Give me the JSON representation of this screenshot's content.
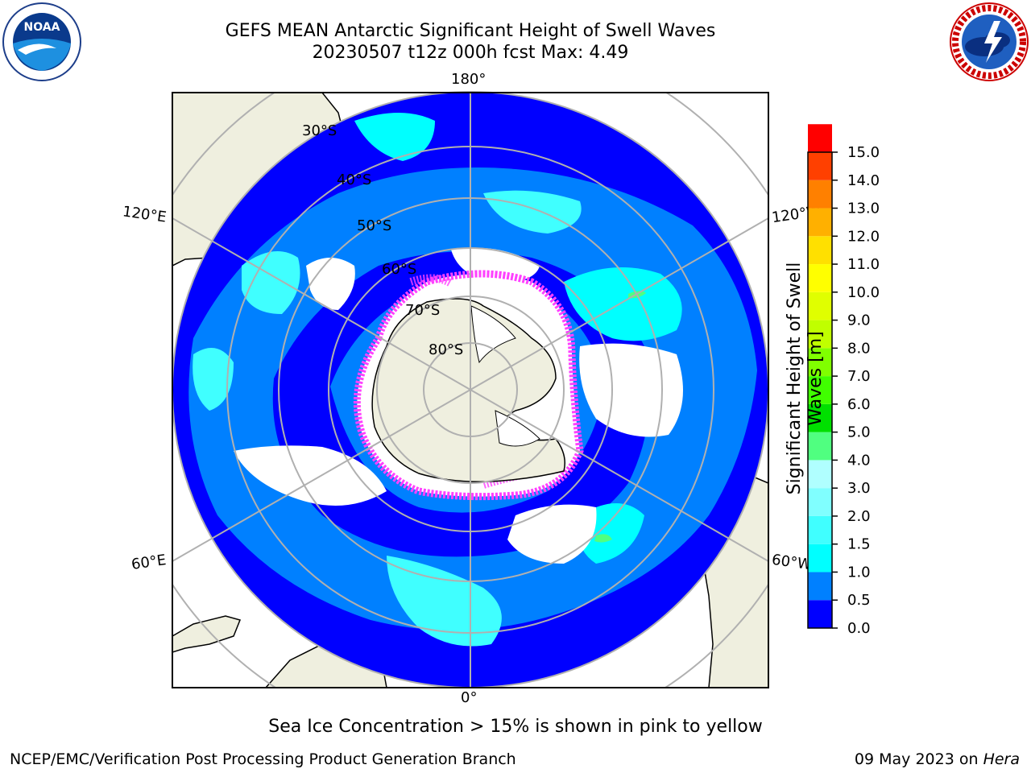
{
  "title": {
    "line1": "GEFS MEAN Antarctic Significant Height of Swell Waves",
    "line2": "20230507 t12z 000h fcst   Max: 4.49"
  },
  "logos": {
    "noaa": "NOAA",
    "noaa_ring": "NATIONAL OCEANIC AND ATMOSPHERIC ADMINISTRATION · U.S. DEPARTMENT OF COMMERCE",
    "nws_ring": "NATIONAL WEATHER SERVICE"
  },
  "map": {
    "projection": "south-polar-stereographic",
    "longitude_labels": {
      "top": "180°",
      "bottom": "0°",
      "upper_left": "120°E",
      "upper_right": "120°W",
      "lower_left": "60°E",
      "lower_right": "60°W"
    },
    "latitude_labels": [
      "30°S",
      "40°S",
      "50°S",
      "60°S",
      "70°S",
      "80°S"
    ],
    "colors": {
      "land": "#efefdf",
      "ocean_low": "#0000ff",
      "ocean_mid": "#0080ff",
      "ocean_high": "#00ffff",
      "ice_white": "#ffffff",
      "sea_ice_pink": "#ff40ff",
      "grid": "#b0b0b0"
    }
  },
  "colorbar": {
    "title": "Significant Height of Swell Waves [m]",
    "ticks": [
      "15.0",
      "14.0",
      "13.0",
      "12.0",
      "11.0",
      "10.0",
      "9.0",
      "8.0",
      "7.0",
      "6.0",
      "5.0",
      "4.0",
      "3.0",
      "2.0",
      "1.5",
      "1.0",
      "0.5",
      "0.0"
    ],
    "colors_bottom_to_top": [
      "#0000ff",
      "#0080ff",
      "#00ffff",
      "#40ffff",
      "#80ffff",
      "#b0ffff",
      "#50ff80",
      "#00e000",
      "#40ff00",
      "#80ff00",
      "#c0ff00",
      "#e0ff00",
      "#ffff00",
      "#ffe000",
      "#ffb000",
      "#ff8000",
      "#ff4000",
      "#ff0000"
    ]
  },
  "note": "Sea Ice Concentration > 15% is shown in pink to yellow",
  "footer": {
    "left": "NCEP/EMC/Verification Post Processing Product Generation Branch",
    "right_prefix": "09 May 2023 on ",
    "right_machine": "Hera"
  }
}
